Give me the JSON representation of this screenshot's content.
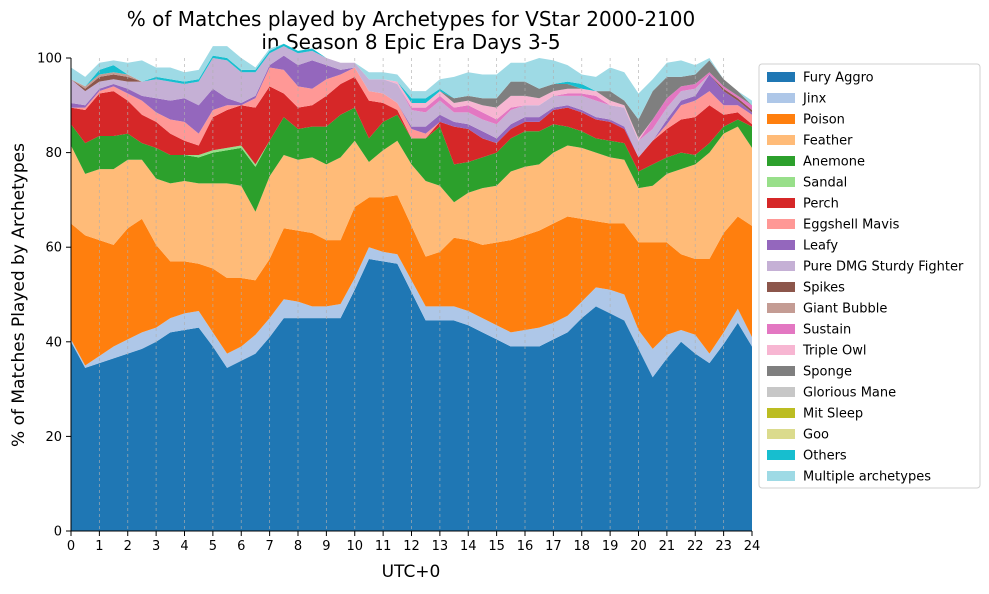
{
  "chart_data": {
    "type": "area",
    "title": "% of Matches played by Archetypes for VStar 2000-2100\nin Season 8 Epic Era Days 3-5",
    "xlabel": "UTC+0",
    "ylabel": "% of Matches Played by Archetypes",
    "xlim": [
      0,
      24
    ],
    "ylim": [
      0,
      100
    ],
    "x_ticks": [
      "0",
      "1",
      "2",
      "3",
      "4",
      "5",
      "6",
      "7",
      "8",
      "9",
      "10",
      "11",
      "12",
      "13",
      "14",
      "15",
      "16",
      "17",
      "18",
      "19",
      "20",
      "21",
      "22",
      "23",
      "24"
    ],
    "y_ticks": [
      "0",
      "20",
      "40",
      "60",
      "80",
      "100"
    ],
    "grid": "vertical dashed",
    "legend_position": "right",
    "stacked": true,
    "x": [
      0,
      0.5,
      1,
      1.5,
      2,
      2.5,
      3,
      3.5,
      4,
      4.5,
      5,
      5.5,
      6,
      6.5,
      7,
      7.5,
      8,
      8.5,
      9,
      9.5,
      10,
      10.5,
      11,
      11.5,
      12,
      12.5,
      13,
      13.5,
      14,
      14.5,
      15,
      15.5,
      16,
      16.5,
      17,
      17.5,
      18,
      18.5,
      19,
      19.5,
      20,
      20.5,
      21,
      21.5,
      22,
      22.5,
      23,
      23.5,
      24
    ],
    "series": [
      {
        "name": "Fury Aggro",
        "color": "#1f77b4",
        "values": [
          40,
          34.5,
          35.5,
          36.5,
          37.5,
          38.5,
          40,
          42,
          42.5,
          43,
          39,
          34.5,
          36,
          37.5,
          41,
          45,
          45,
          45,
          45,
          45,
          51,
          57.5,
          57,
          56.5,
          50.5,
          44.5,
          44.5,
          44.5,
          43.5,
          42,
          40.5,
          39,
          39,
          39,
          40.5,
          42,
          45,
          47.5,
          46,
          44.5,
          38.5,
          32.5,
          36.5,
          40,
          37.5,
          35.5,
          39.5,
          44,
          39
        ]
      },
      {
        "name": "Jinx",
        "color": "#aec7e8",
        "values": [
          0.5,
          0.5,
          1.5,
          2.5,
          3,
          3.5,
          3,
          3,
          3.5,
          3.5,
          3,
          3,
          3,
          4,
          4,
          4,
          3.5,
          2.5,
          2.5,
          3,
          2.5,
          2.5,
          2,
          2,
          2.5,
          3,
          3,
          3,
          3,
          3,
          3,
          3,
          3.5,
          4,
          3.5,
          3.5,
          3.5,
          4,
          5,
          5.5,
          4,
          6,
          5,
          2.5,
          4,
          2,
          2.5,
          3,
          2
        ]
      },
      {
        "name": "Poison",
        "color": "#ff7f0e",
        "values": [
          24.5,
          27.5,
          24.5,
          21.5,
          23.5,
          24,
          17.5,
          12,
          11,
          10,
          13.5,
          16,
          14.5,
          11.5,
          12.5,
          15,
          15,
          15.5,
          14,
          13.5,
          15,
          10.5,
          11.5,
          12.5,
          11.5,
          10.5,
          11.5,
          14.5,
          15,
          15.5,
          17.5,
          19.5,
          20,
          20.5,
          21,
          21,
          17.5,
          14,
          14,
          15,
          18.5,
          22.5,
          19.5,
          16,
          16,
          20,
          21,
          19.5,
          23.5
        ]
      },
      {
        "name": "Feather",
        "color": "#ffbb78",
        "values": [
          16.5,
          13,
          15,
          16,
          14.5,
          12.5,
          14,
          16.5,
          17,
          17,
          18,
          20,
          19.5,
          14.5,
          17.5,
          15.5,
          15,
          16,
          16,
          17.5,
          14,
          7.5,
          10,
          11.5,
          13,
          16,
          14,
          7.5,
          10,
          12,
          12,
          14.5,
          14.5,
          14,
          15,
          15,
          15,
          14.5,
          14,
          13.5,
          11.5,
          12,
          14.5,
          18,
          20,
          22.5,
          21,
          19,
          16.5
        ]
      },
      {
        "name": "Anemone",
        "color": "#2ca02c",
        "values": [
          4.5,
          6.5,
          7,
          7,
          5.5,
          3.5,
          6.5,
          6,
          5.5,
          5.5,
          6.5,
          7,
          8,
          9.5,
          7.5,
          8,
          6.5,
          6.5,
          8,
          9,
          7,
          5,
          6,
          5.5,
          5.5,
          9,
          12.5,
          8,
          6.5,
          6.5,
          7,
          7,
          7.5,
          7,
          6,
          4,
          3.5,
          3,
          3.5,
          3.5,
          3.5,
          4.5,
          3.5,
          3.5,
          2,
          2,
          1.5,
          1.5,
          4.5
        ]
      },
      {
        "name": "Sandal",
        "color": "#98df8a",
        "values": [
          0,
          0,
          0,
          0,
          0,
          0,
          0,
          0,
          0,
          0.5,
          0.5,
          0.5,
          0.5,
          0.5,
          0,
          0,
          0,
          0,
          0,
          0,
          0,
          0,
          0,
          0,
          0,
          0,
          0,
          0,
          0,
          0,
          0,
          0,
          0,
          0,
          0,
          0,
          0,
          0,
          0,
          0,
          0,
          0,
          0,
          0,
          0,
          0,
          0,
          0,
          0
        ]
      },
      {
        "name": "Perch",
        "color": "#d62728",
        "values": [
          3.5,
          7,
          9,
          9.5,
          7,
          6,
          5.5,
          4.5,
          3,
          2,
          7,
          8,
          8.5,
          12,
          11.5,
          5,
          4.5,
          4.5,
          6.5,
          6.5,
          6.5,
          8,
          4,
          1,
          0,
          0,
          1,
          8,
          7,
          4,
          2,
          2,
          2,
          2,
          3,
          4,
          4,
          4,
          4,
          3,
          3,
          5,
          6,
          7,
          8,
          8,
          2.5,
          1.5,
          0.5
        ]
      },
      {
        "name": "Eggshell Mavis",
        "color": "#ff9896",
        "values": [
          0,
          0.5,
          0.5,
          1,
          1.5,
          3,
          2,
          3,
          4,
          2.5,
          1.5,
          1,
          0,
          2,
          4,
          5,
          4.5,
          3.5,
          3.5,
          2,
          2,
          2,
          2,
          1.5,
          2,
          1,
          0,
          0,
          0,
          0,
          0,
          0,
          0,
          0,
          0,
          0,
          0,
          0,
          0,
          0,
          0,
          0,
          1,
          3,
          3.5,
          3,
          2,
          1.5,
          2
        ]
      },
      {
        "name": "Leafy",
        "color": "#9467bd",
        "values": [
          1,
          0.5,
          0.5,
          0.5,
          1,
          1,
          3,
          4,
          5,
          6,
          4.5,
          1.5,
          0.5,
          0.5,
          0.5,
          3,
          4.5,
          6,
          3,
          1,
          0,
          0,
          0,
          0,
          0.5,
          1.5,
          1.5,
          1,
          1,
          1.5,
          1,
          1,
          1,
          1,
          0.5,
          0.5,
          0.5,
          0.5,
          0.5,
          0.5,
          0,
          0,
          1,
          1,
          1,
          3.5,
          3,
          1,
          0.5
        ]
      },
      {
        "name": "Pure DMG Sturdy Fighter",
        "color": "#c5b0d5",
        "values": [
          5,
          3,
          1.5,
          1,
          1.5,
          3,
          4,
          4,
          3,
          5,
          6.5,
          8,
          6.5,
          5,
          2.5,
          2,
          2.5,
          2,
          1.5,
          1.5,
          1,
          2.5,
          3,
          4,
          3.5,
          3,
          3,
          2,
          2.5,
          2.5,
          3,
          3,
          2.5,
          2.5,
          2.5,
          2,
          3,
          3.5,
          3,
          4,
          3.5,
          2.5,
          2.5,
          2,
          1.5,
          0,
          0,
          0,
          0
        ]
      },
      {
        "name": "Spikes",
        "color": "#8c564b",
        "values": [
          0,
          0.5,
          1,
          1,
          1,
          0,
          0,
          0,
          0,
          0,
          0,
          0,
          0,
          0,
          0,
          0,
          0,
          0,
          0,
          0,
          0,
          0,
          0,
          0,
          0,
          0,
          0,
          0,
          0,
          0,
          0,
          0,
          0,
          0,
          0,
          0,
          0,
          0,
          0,
          0,
          0,
          0,
          0,
          0,
          0,
          0,
          0.5,
          0.5,
          0.5
        ]
      },
      {
        "name": "Giant Bubble",
        "color": "#c49c94",
        "values": [
          0,
          0.5,
          0.5,
          0.5,
          0.5,
          0,
          0,
          0,
          0,
          0,
          0,
          0,
          0,
          0,
          0,
          0,
          0,
          0,
          0,
          0,
          0,
          0,
          0,
          0,
          0,
          0,
          0,
          0,
          0,
          0,
          0,
          0,
          0,
          0,
          0,
          0,
          0,
          0,
          0,
          0,
          0,
          0,
          0,
          0,
          0,
          0,
          0,
          0,
          0
        ]
      },
      {
        "name": "Sustain",
        "color": "#e377c2",
        "values": [
          0,
          0,
          0,
          0,
          0,
          0,
          0,
          0,
          0,
          0,
          0,
          0,
          0,
          0,
          0,
          0,
          0,
          0,
          0,
          0,
          0,
          0,
          0,
          0,
          0.5,
          1,
          1,
          1,
          1.5,
          1.5,
          1,
          0.5,
          0,
          0,
          0,
          0.5,
          0.5,
          1,
          0,
          0,
          0,
          2,
          2,
          1,
          1,
          0.5,
          0.5,
          0.5,
          1
        ]
      },
      {
        "name": "Triple Owl",
        "color": "#f7b6d2",
        "values": [
          0,
          0,
          0,
          0,
          0,
          0,
          0,
          0,
          0,
          0,
          0,
          0,
          0,
          0,
          0,
          0,
          0,
          0,
          0,
          0,
          0,
          0,
          0,
          0.5,
          1,
          1,
          1,
          1,
          1,
          1.5,
          2.5,
          2.5,
          2,
          1.5,
          1,
          1,
          1,
          1,
          1,
          0.5,
          0.5,
          0,
          0,
          0,
          0,
          0,
          0,
          0,
          0
        ]
      },
      {
        "name": "Sponge",
        "color": "#7f7f7f",
        "values": [
          0,
          0,
          0,
          0,
          0,
          0,
          0,
          0,
          0,
          0,
          0,
          0,
          0,
          0,
          0,
          0,
          0,
          0,
          0,
          0,
          0,
          0,
          0,
          0,
          0,
          0,
          0,
          1,
          1,
          1.5,
          2,
          3,
          3,
          2,
          1.5,
          1,
          0,
          0,
          2,
          1,
          4,
          6,
          4.5,
          2,
          2,
          2.5,
          1.5,
          1,
          0
        ]
      },
      {
        "name": "Glorious Mane",
        "color": "#c7c7c7",
        "values": [
          0,
          0,
          0,
          0,
          0,
          0,
          0,
          0,
          0,
          0,
          0,
          0,
          0,
          0,
          0,
          0,
          0,
          0,
          0,
          0,
          0,
          0,
          0,
          0,
          0,
          0,
          0,
          0,
          0,
          0,
          0,
          0,
          0,
          0,
          0,
          0,
          0,
          0,
          0,
          0,
          0,
          0,
          0,
          0,
          0,
          0,
          0,
          0,
          0
        ]
      },
      {
        "name": "Mit Sleep",
        "color": "#bcbd22",
        "values": [
          0,
          0,
          0,
          0,
          0,
          0,
          0,
          0,
          0,
          0,
          0,
          0,
          0,
          0,
          0,
          0,
          0,
          0,
          0,
          0,
          0,
          0,
          0,
          0,
          0,
          0,
          0,
          0,
          0,
          0,
          0,
          0,
          0,
          0,
          0,
          0,
          0,
          0,
          0,
          0,
          0,
          0,
          0,
          0,
          0,
          0,
          0,
          0,
          0
        ]
      },
      {
        "name": "Goo",
        "color": "#dbdb8d",
        "values": [
          0,
          0,
          0,
          0,
          0,
          0,
          0,
          0,
          0,
          0,
          0,
          0,
          0,
          0,
          0,
          0,
          0,
          0,
          0,
          0,
          0,
          0,
          0,
          0,
          0,
          0,
          0,
          0,
          0,
          0,
          0,
          0,
          0,
          0,
          0,
          0,
          0,
          0,
          0,
          0,
          0,
          0,
          0,
          0,
          0,
          0,
          0,
          0,
          0
        ]
      },
      {
        "name": "Others",
        "color": "#17becf",
        "values": [
          0,
          0,
          1,
          1.5,
          0,
          0,
          0.5,
          0.5,
          0.5,
          0.5,
          0.5,
          0.5,
          0.5,
          0.5,
          0.5,
          0.5,
          0.5,
          0.5,
          0,
          0,
          0,
          0,
          0,
          0,
          1,
          1,
          0.5,
          0,
          0,
          0,
          0,
          0,
          0,
          0,
          0,
          0.5,
          1,
          0,
          0,
          0,
          0,
          0,
          0,
          0,
          0,
          0,
          0,
          0,
          0
        ]
      },
      {
        "name": "Multiple archetypes",
        "color": "#9edae5",
        "values": [
          2.5,
          2,
          1.5,
          1,
          2.5,
          4.5,
          2,
          2.5,
          2,
          2,
          2,
          2.5,
          2.5,
          0.5,
          0.5,
          0,
          0,
          0,
          0,
          0,
          0,
          1.5,
          1.5,
          1.5,
          1.5,
          1.5,
          2,
          4.5,
          5,
          5,
          5,
          4,
          4,
          6.5,
          5,
          3.5,
          2,
          3,
          5,
          6,
          5.5,
          2.5,
          3,
          3.5,
          2,
          0.5,
          0,
          0,
          1
        ]
      }
    ]
  }
}
